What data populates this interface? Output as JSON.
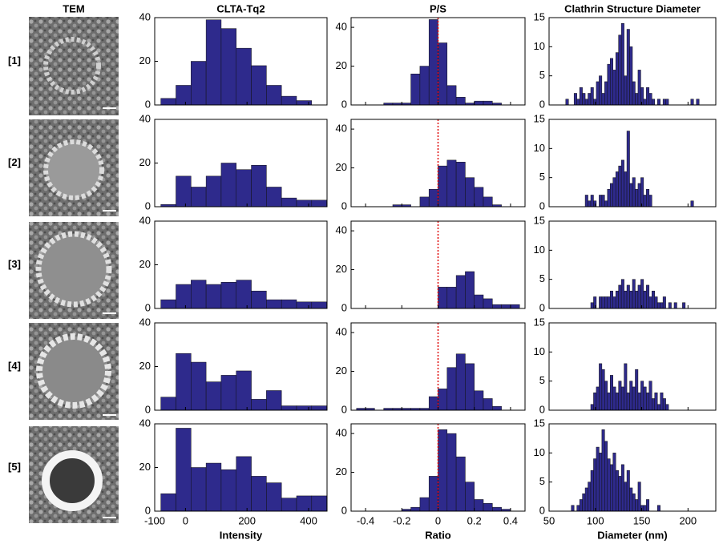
{
  "header": "TEM",
  "rows": [
    "[1]",
    "[2]",
    "[3]",
    "[4]",
    "[5]"
  ],
  "chart_data": [
    {
      "type": "histogram",
      "title": "CLTA-Tq2",
      "x_label": "Intensity",
      "color": "#2e2a8c",
      "xlim": [
        -100,
        460
      ],
      "xticks": [
        -100,
        0,
        200,
        400
      ],
      "ylim": [
        0,
        40
      ],
      "yticks": [
        0,
        20,
        40
      ],
      "bins": [
        -80,
        -31,
        18,
        67,
        116,
        165,
        214,
        263,
        312,
        361,
        410,
        459
      ],
      "panels": [
        {
          "counts": [
            3,
            9,
            20,
            39,
            35,
            26,
            18,
            9,
            4,
            2,
            0
          ]
        },
        {
          "counts": [
            1,
            14,
            9,
            14,
            20,
            17,
            19,
            9,
            4,
            3,
            3
          ]
        },
        {
          "counts": [
            4,
            11,
            13,
            11,
            12,
            13,
            8,
            4,
            4,
            3,
            3
          ]
        },
        {
          "counts": [
            6,
            26,
            22,
            13,
            16,
            18,
            5,
            9,
            2,
            2,
            2
          ]
        },
        {
          "counts": [
            8,
            38,
            20,
            22,
            19,
            25,
            16,
            13,
            6,
            7,
            7
          ]
        }
      ]
    },
    {
      "type": "histogram",
      "title": "P/S",
      "x_label": "Ratio",
      "color": "#2e2a8c",
      "ref_line": 0,
      "ref_color": "#e00000",
      "xlim": [
        -0.48,
        0.48
      ],
      "xticks": [
        -0.4,
        -0.2,
        0,
        0.2,
        0.4
      ],
      "ylim": [
        0,
        45
      ],
      "yticks": [
        0,
        20,
        40
      ],
      "bins": [
        -0.45,
        -0.4,
        -0.35,
        -0.3,
        -0.25,
        -0.2,
        -0.15,
        -0.1,
        -0.05,
        0,
        0.05,
        0.1,
        0.15,
        0.2,
        0.25,
        0.3,
        0.35,
        0.4,
        0.45
      ],
      "panels": [
        {
          "counts": [
            0,
            0,
            0,
            1,
            1,
            1,
            16,
            20,
            44,
            32,
            10,
            4,
            1,
            2,
            2,
            1,
            0,
            0
          ]
        },
        {
          "counts": [
            0,
            0,
            0,
            0,
            1,
            1,
            0,
            5,
            9,
            21,
            24,
            23,
            15,
            10,
            5,
            1,
            0,
            0
          ]
        },
        {
          "counts": [
            0,
            0,
            0,
            0,
            0,
            0,
            0,
            0,
            0,
            11,
            11,
            17,
            19,
            7,
            5,
            2,
            2,
            2
          ]
        },
        {
          "counts": [
            1,
            1,
            0,
            1,
            1,
            1,
            1,
            1,
            7,
            11,
            22,
            29,
            24,
            10,
            6,
            2,
            0,
            0
          ]
        },
        {
          "counts": [
            0,
            0,
            0,
            0,
            0,
            1,
            2,
            7,
            18,
            42,
            40,
            28,
            15,
            6,
            4,
            2,
            1,
            0
          ]
        }
      ]
    },
    {
      "type": "histogram",
      "title": "Clathrin Structure Diameter",
      "x_label": "Diameter (nm)",
      "color": "#2e2a8c",
      "xlim": [
        50,
        230
      ],
      "xticks": [
        50,
        100,
        150,
        200
      ],
      "ylim": [
        0,
        15
      ],
      "yticks": [
        0,
        5,
        10,
        15
      ],
      "bins": [
        62,
        65,
        68,
        71,
        74,
        77,
        80,
        83,
        86,
        89,
        92,
        95,
        98,
        101,
        104,
        107,
        110,
        113,
        116,
        119,
        122,
        125,
        128,
        131,
        134,
        137,
        140,
        143,
        146,
        149,
        152,
        155,
        158,
        161,
        164,
        167,
        170,
        173,
        176,
        179,
        182,
        185,
        188,
        191,
        194,
        197,
        200,
        203,
        206,
        209,
        212
      ],
      "panels": [
        {
          "counts": [
            0,
            0,
            1,
            0,
            0,
            2,
            1,
            3,
            2,
            1,
            2,
            3,
            1,
            4,
            5,
            2,
            4,
            7,
            8,
            6,
            9,
            12,
            14,
            5,
            13,
            10,
            4,
            2,
            6,
            3,
            1,
            3,
            2,
            1,
            0,
            1,
            0,
            1,
            1,
            0,
            0,
            0,
            0,
            0,
            0,
            0,
            0,
            1,
            0,
            1
          ]
        },
        {
          "counts": [
            0,
            0,
            0,
            0,
            0,
            0,
            0,
            0,
            0,
            2,
            1,
            2,
            1,
            0,
            2,
            2,
            1,
            3,
            4,
            5,
            6,
            7,
            8,
            6,
            13,
            4,
            5,
            3,
            4,
            5,
            2,
            3,
            2,
            0,
            0,
            0,
            0,
            0,
            0,
            0,
            0,
            0,
            0,
            0,
            0,
            0,
            0,
            1,
            0,
            0
          ]
        },
        {
          "counts": [
            0,
            0,
            0,
            0,
            0,
            0,
            0,
            0,
            0,
            0,
            0,
            1,
            2,
            0,
            2,
            2,
            2,
            2,
            3,
            2,
            3,
            4,
            5,
            3,
            4,
            3,
            5,
            3,
            4,
            5,
            3,
            4,
            2,
            3,
            2,
            1,
            1,
            2,
            0,
            1,
            0,
            1,
            0,
            0,
            1,
            0,
            0,
            0,
            0,
            0
          ]
        },
        {
          "counts": [
            0,
            0,
            0,
            0,
            0,
            0,
            0,
            0,
            0,
            0,
            0,
            1,
            3,
            4,
            8,
            7,
            5,
            3,
            6,
            4,
            3,
            5,
            4,
            8,
            3,
            5,
            4,
            7,
            3,
            5,
            4,
            3,
            5,
            2,
            3,
            1,
            3,
            2,
            1,
            0,
            0,
            0,
            0,
            0,
            0,
            0,
            0,
            0,
            0,
            0
          ]
        },
        {
          "counts": [
            0,
            0,
            0,
            0,
            1,
            0,
            1,
            2,
            3,
            4,
            5,
            7,
            9,
            11,
            10,
            14,
            12,
            9,
            8,
            10,
            7,
            6,
            8,
            5,
            7,
            4,
            3,
            2,
            5,
            1,
            1,
            2,
            0,
            0,
            0,
            1,
            0,
            0,
            0,
            0,
            0,
            0,
            0,
            0,
            0,
            0,
            0,
            0,
            0,
            0
          ]
        }
      ]
    }
  ]
}
